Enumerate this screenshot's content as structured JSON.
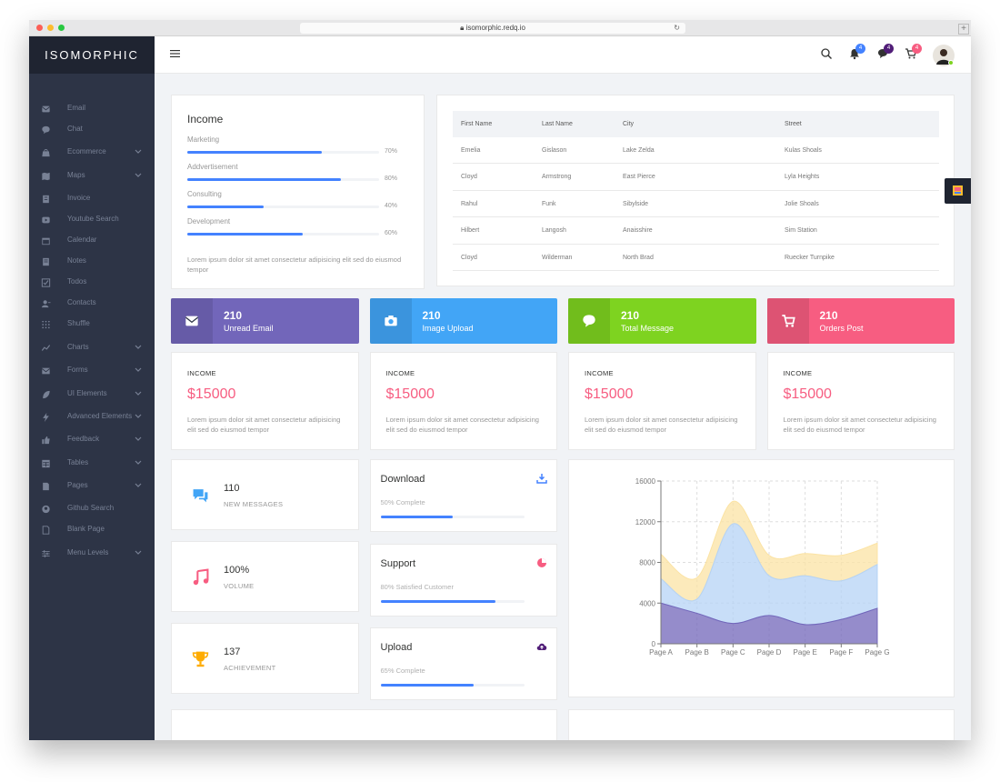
{
  "browser": {
    "url": "isomorphic.redq.io"
  },
  "sidebar": {
    "logo": "ISOMORPHIC",
    "items": [
      {
        "label": "Email",
        "icon": "mail-icon",
        "chevron": false
      },
      {
        "label": "Chat",
        "icon": "chat-icon",
        "chevron": false
      },
      {
        "label": "Ecommerce",
        "icon": "bag-icon",
        "chevron": true
      },
      {
        "label": "Maps",
        "icon": "map-icon",
        "chevron": true
      },
      {
        "label": "Invoice",
        "icon": "invoice-icon",
        "chevron": false
      },
      {
        "label": "Youtube Search",
        "icon": "youtube-icon",
        "chevron": false
      },
      {
        "label": "Calendar",
        "icon": "calendar-icon",
        "chevron": false
      },
      {
        "label": "Notes",
        "icon": "notes-icon",
        "chevron": false
      },
      {
        "label": "Todos",
        "icon": "checkbox-icon",
        "chevron": false
      },
      {
        "label": "Contacts",
        "icon": "contacts-icon",
        "chevron": false
      },
      {
        "label": "Shuffle",
        "icon": "grid-icon",
        "chevron": false
      },
      {
        "label": "Charts",
        "icon": "chart-icon",
        "chevron": true
      },
      {
        "label": "Forms",
        "icon": "forms-icon",
        "chevron": true
      },
      {
        "label": "UI Elements",
        "icon": "leaf-icon",
        "chevron": true
      },
      {
        "label": "Advanced Elements",
        "icon": "bolt-icon",
        "chevron": true
      },
      {
        "label": "Feedback",
        "icon": "thumb-icon",
        "chevron": true
      },
      {
        "label": "Tables",
        "icon": "table-icon",
        "chevron": true
      },
      {
        "label": "Pages",
        "icon": "page-icon",
        "chevron": true
      },
      {
        "label": "Github Search",
        "icon": "github-icon",
        "chevron": false
      },
      {
        "label": "Blank Page",
        "icon": "blank-page-icon",
        "chevron": false
      },
      {
        "label": "Menu Levels",
        "icon": "sliders-icon",
        "chevron": true
      }
    ]
  },
  "topbar": {
    "notification_count": "4",
    "message_count": "4",
    "cart_count": "4"
  },
  "income": {
    "title": "Income",
    "bars": [
      {
        "label": "Marketing",
        "percent": 70,
        "text": "70%"
      },
      {
        "label": "Addvertisement",
        "percent": 80,
        "text": "80%"
      },
      {
        "label": "Consulting",
        "percent": 40,
        "text": "40%"
      },
      {
        "label": "Development",
        "percent": 60,
        "text": "60%"
      }
    ],
    "description": "Lorem ipsum dolor sit amet consectetur adipisicing elit sed do eiusmod tempor"
  },
  "table": {
    "headers": [
      "First Name",
      "Last Name",
      "City",
      "Street"
    ],
    "rows": [
      [
        "Emelia",
        "Gislason",
        "Lake Zelda",
        "Kulas Shoals"
      ],
      [
        "Cloyd",
        "Armstrong",
        "East Pierce",
        "Lyla Heights"
      ],
      [
        "Rahul",
        "Funk",
        "Sibylside",
        "Jolie Shoals"
      ],
      [
        "Hilbert",
        "Langosh",
        "Anaisshire",
        "Sim Station"
      ],
      [
        "Cloyd",
        "Wilderman",
        "North Brad",
        "Ruecker Turnpike"
      ]
    ]
  },
  "stickers": [
    {
      "number": "210",
      "label": "Unread Email",
      "color": "#7266ba",
      "icon": "mail-icon"
    },
    {
      "number": "210",
      "label": "Image Upload",
      "color": "#42a5f6",
      "icon": "camera-icon"
    },
    {
      "number": "210",
      "label": "Total Message",
      "color": "#7ed320",
      "icon": "chat-icon"
    },
    {
      "number": "210",
      "label": "Orders Post",
      "color": "#f75d81",
      "icon": "cart-icon"
    }
  ],
  "income_cards": [
    {
      "title": "INCOME",
      "amount": "$15000",
      "text": "Lorem ipsum dolor sit amet consectetur adipisicing elit sed do eiusmod tempor"
    },
    {
      "title": "INCOME",
      "amount": "$15000",
      "text": "Lorem ipsum dolor sit amet consectetur adipisicing elit sed do eiusmod tempor"
    },
    {
      "title": "INCOME",
      "amount": "$15000",
      "text": "Lorem ipsum dolor sit amet consectetur adipisicing elit sed do eiusmod tempor"
    },
    {
      "title": "INCOME",
      "amount": "$15000",
      "text": "Lorem ipsum dolor sit amet consectetur adipisicing elit sed do eiusmod tempor"
    }
  ],
  "small_widgets": [
    {
      "number": "110",
      "label": "NEW MESSAGES",
      "icon": "messages-icon",
      "color": "#42a5f6"
    },
    {
      "number": "100%",
      "label": "VOLUME",
      "icon": "music-icon",
      "color": "#f75d81"
    },
    {
      "number": "137",
      "label": "ACHIEVEMENT",
      "icon": "trophy-icon",
      "color": "#feac01"
    }
  ],
  "progress_widgets": [
    {
      "title": "Download",
      "subtitle": "50% Complete",
      "percent": 50,
      "icon": "download-icon",
      "icon_color": "#4482ff"
    },
    {
      "title": "Support",
      "subtitle": "80% Satisfied Customer",
      "percent": 80,
      "icon": "pie-icon",
      "icon_color": "#f75d81"
    },
    {
      "title": "Upload",
      "subtitle": "65% Complete",
      "percent": 65,
      "icon": "cloud-upload-icon",
      "icon_color": "#511e78"
    }
  ],
  "chart_data": {
    "type": "area",
    "categories": [
      "Page A",
      "Page B",
      "Page C",
      "Page D",
      "Page E",
      "Page F",
      "Page G"
    ],
    "ylim": [
      0,
      16000
    ],
    "yticks": [
      "0",
      "4000",
      "8000",
      "12000",
      "16000"
    ],
    "series": [
      {
        "values": [
          4000,
          3000,
          2000,
          2780,
          1890,
          2390,
          3490
        ],
        "color": "#7266ba"
      },
      {
        "values": [
          2400,
          1398,
          9800,
          3908,
          4800,
          3800,
          4300
        ],
        "color": "#b5d3f5"
      },
      {
        "values": [
          2400,
          2100,
          2200,
          2000,
          2181,
          2500,
          2100
        ],
        "color": "#fbe3a4"
      }
    ],
    "grid": true
  }
}
